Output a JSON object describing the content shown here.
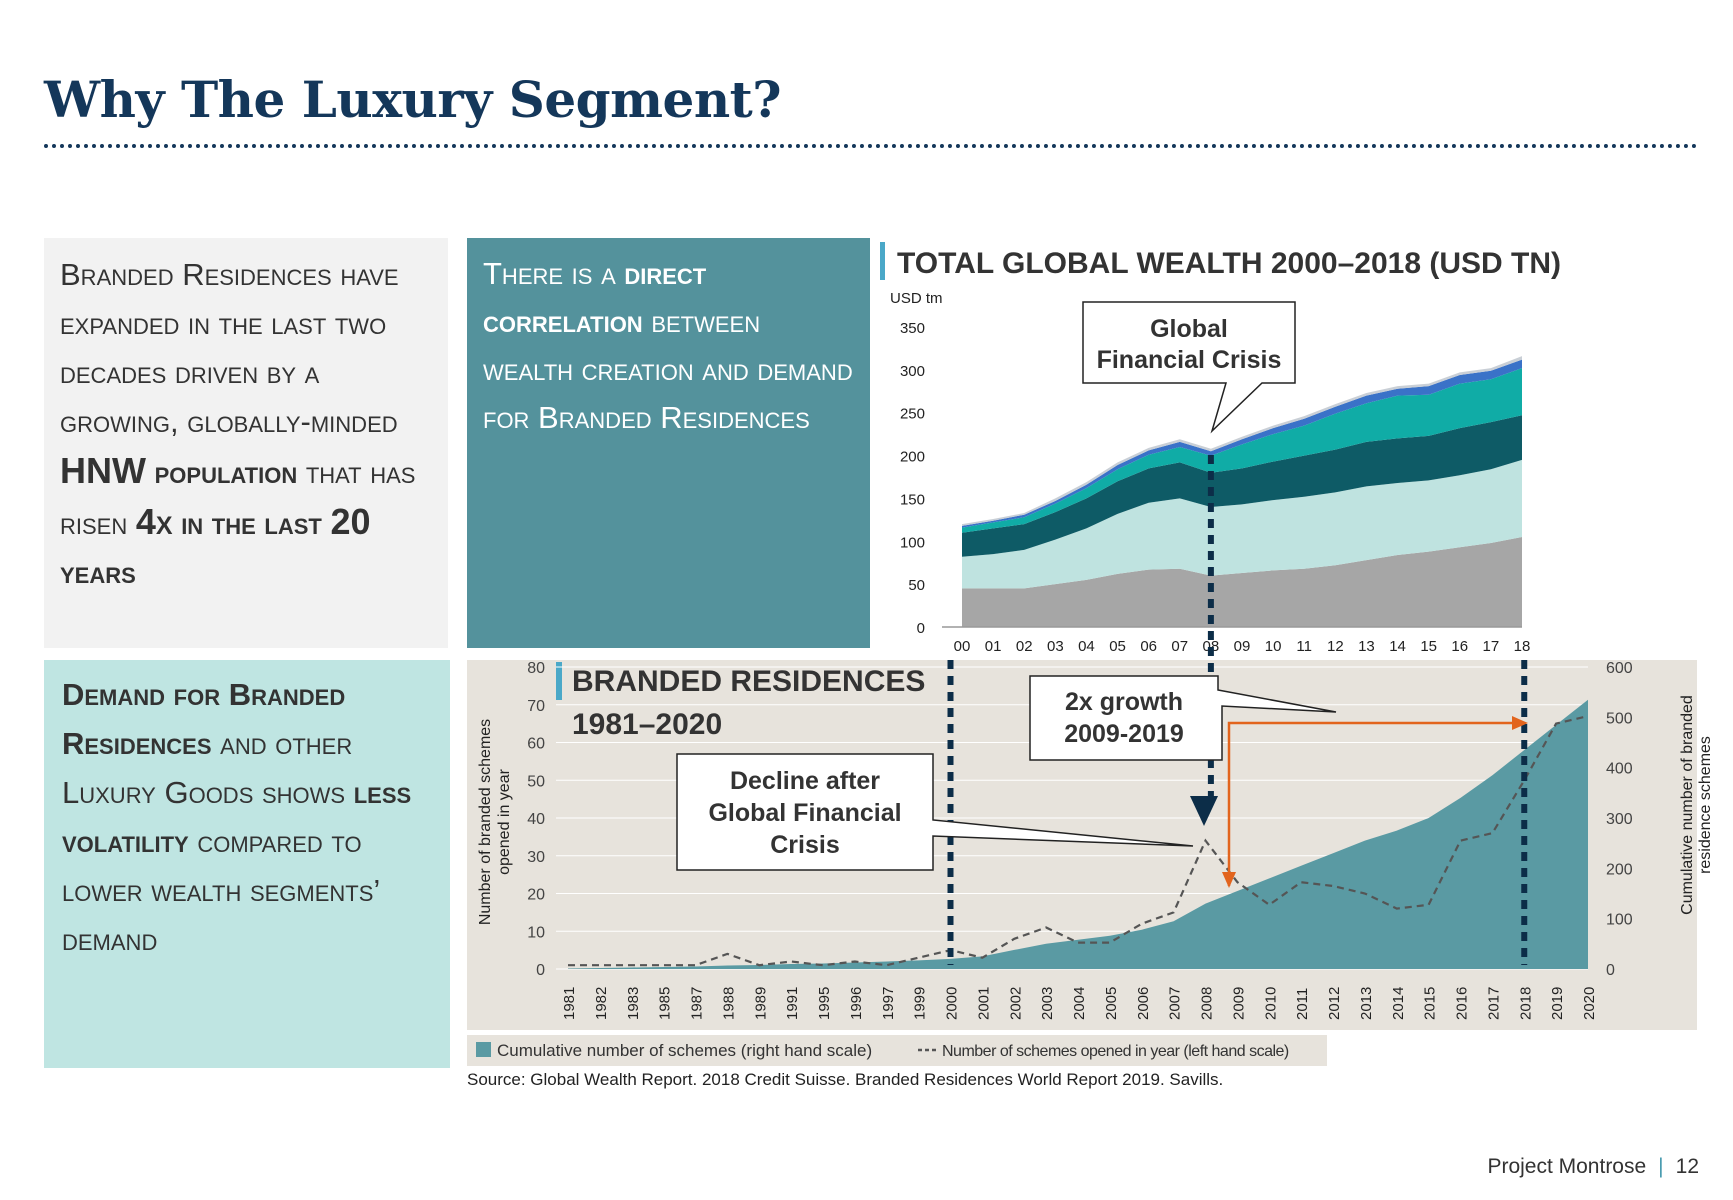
{
  "page": {
    "title": "Why The Luxury Segment?",
    "source": "Source: Global Wealth Report. 2018 Credit Suisse. Branded Residences World Report 2019. Savills.",
    "project": "Project Montrose",
    "page_number": "12"
  },
  "boxes": {
    "box1": {
      "t1": "Branded Residences have expanded in the last two decades driven by a growing, globally-minded ",
      "b1": "HNW",
      "b2": "population",
      "t2": " that has risen ",
      "b3": "4x",
      "b4": "in the last",
      "b5": "20",
      "b6": "years"
    },
    "box2": {
      "t1": "There is a ",
      "b1": "direct correlation",
      "t2": " between wealth creation and demand for Branded Residences"
    },
    "box3": {
      "b1": "Demand for Branded Residences",
      "t1": " and other Luxury Goods shows ",
      "b2": "less volatility",
      "t2": " compared to lower wealth segments’ demand"
    }
  },
  "colors": {
    "navy": "#14375a",
    "teal_box": "#54929c",
    "light_teal": "#bfe5e2",
    "grey_area": "#a6a6a6",
    "light_area": "#bfe3e0",
    "dark_area": "#0e5b66",
    "teal_area": "#10aca6",
    "blue_area": "#3a72c8",
    "cumulative": "#5a9aa3",
    "annual_line": "#555555",
    "arrow": "#e2641d",
    "dash_line": "#0c2d48"
  },
  "annotations": {
    "gfc": "Global Financial Crisis",
    "gfc_l1": "Global",
    "gfc_l2": "Financial Crisis",
    "growth_l1": "2x growth",
    "growth_l2": "2009-2019",
    "decline_l1": "Decline after",
    "decline_l2": "Global Financial",
    "decline_l3": "Crisis"
  },
  "chart_data": [
    {
      "type": "area",
      "stacked": true,
      "title": "TOTAL GLOBAL WEALTH 2000–2018 (USD TN)",
      "ylabel": "USD tm",
      "ylim": [
        0,
        350
      ],
      "yticks": [
        0,
        50,
        100,
        150,
        200,
        250,
        300,
        350
      ],
      "categories": [
        "00",
        "01",
        "02",
        "03",
        "04",
        "05",
        "06",
        "07",
        "08",
        "09",
        "10",
        "11",
        "12",
        "13",
        "14",
        "15",
        "16",
        "17",
        "18"
      ],
      "series": [
        {
          "name": "grey band",
          "values": [
            45,
            45,
            45,
            50,
            55,
            62,
            67,
            68,
            60,
            63,
            66,
            68,
            72,
            78,
            84,
            88,
            93,
            98,
            105
          ]
        },
        {
          "name": "light band",
          "values": [
            37,
            40,
            45,
            52,
            60,
            70,
            78,
            82,
            80,
            80,
            82,
            84,
            85,
            86,
            84,
            83,
            84,
            86,
            90
          ]
        },
        {
          "name": "dark band",
          "values": [
            28,
            30,
            30,
            32,
            35,
            38,
            40,
            42,
            40,
            42,
            45,
            48,
            50,
            52,
            52,
            52,
            55,
            55,
            52
          ]
        },
        {
          "name": "teal band",
          "values": [
            6,
            7,
            8,
            10,
            12,
            14,
            16,
            18,
            20,
            28,
            32,
            35,
            42,
            45,
            50,
            48,
            52,
            50,
            55
          ]
        },
        {
          "name": "blue band",
          "values": [
            2,
            2,
            3,
            3,
            4,
            5,
            5,
            6,
            5,
            6,
            7,
            8,
            8,
            9,
            8,
            10,
            10,
            10,
            10
          ]
        },
        {
          "name": "pale band",
          "values": [
            2,
            2,
            2,
            3,
            3,
            3,
            3,
            3,
            3,
            3,
            3,
            3,
            3,
            3,
            3,
            3,
            3,
            3,
            4
          ]
        }
      ]
    },
    {
      "type": "area+line",
      "title": "BRANDED RESIDENCES 1981–2020",
      "title_l1": "BRANDED RESIDENCES",
      "title_l2": "1981–2020",
      "ylabel_left": "Number of branded schemes opened in year",
      "ylabel_left_l1": "Number of branded schemes",
      "ylabel_left_l2": "opened in year",
      "ylabel_right": "Cumulative number of branded residence schemes",
      "ylabel_right_l1": "Cumulative number of branded",
      "ylabel_right_l2": "residence schemes",
      "ylim_left": [
        0,
        80
      ],
      "yticks_left": [
        0,
        10,
        20,
        30,
        40,
        50,
        60,
        70,
        80
      ],
      "ylim_right": [
        0,
        600
      ],
      "yticks_right": [
        0,
        100,
        200,
        300,
        400,
        500,
        600
      ],
      "categories": [
        "1981",
        "1982",
        "1983",
        "1985",
        "1987",
        "1988",
        "1989",
        "1991",
        "1995",
        "1996",
        "1997",
        "1999",
        "2000",
        "2001",
        "2002",
        "2003",
        "2004",
        "2005",
        "2006",
        "2007",
        "2008",
        "2009",
        "2010",
        "2011",
        "2012",
        "2013",
        "2014",
        "2015",
        "2016",
        "2017",
        "2018",
        "2019",
        "2020"
      ],
      "series": [
        {
          "name": "Cumulative number of schemes (right hand scale)",
          "axis": "right",
          "values": [
            1,
            2,
            3,
            4,
            5,
            7,
            8,
            10,
            11,
            13,
            15,
            17,
            20,
            25,
            38,
            50,
            58,
            66,
            78,
            95,
            130,
            155,
            180,
            205,
            230,
            255,
            275,
            300,
            340,
            385,
            435,
            485,
            535
          ]
        },
        {
          "name": "Number of schemes opened in year (left hand scale)",
          "axis": "left",
          "values": [
            1,
            1,
            1,
            1,
            1,
            4,
            1,
            2,
            1,
            2,
            1,
            3,
            5,
            3,
            8,
            11,
            7,
            7,
            12,
            15,
            34,
            23,
            17,
            23,
            22,
            20,
            16,
            17,
            34,
            36,
            50,
            65,
            67
          ]
        }
      ],
      "legend": [
        "Cumulative number of schemes (right hand scale)",
        "Number of schemes opened in year (left hand scale)"
      ],
      "vertical_markers": [
        "2000",
        "2008",
        "2018"
      ]
    }
  ]
}
